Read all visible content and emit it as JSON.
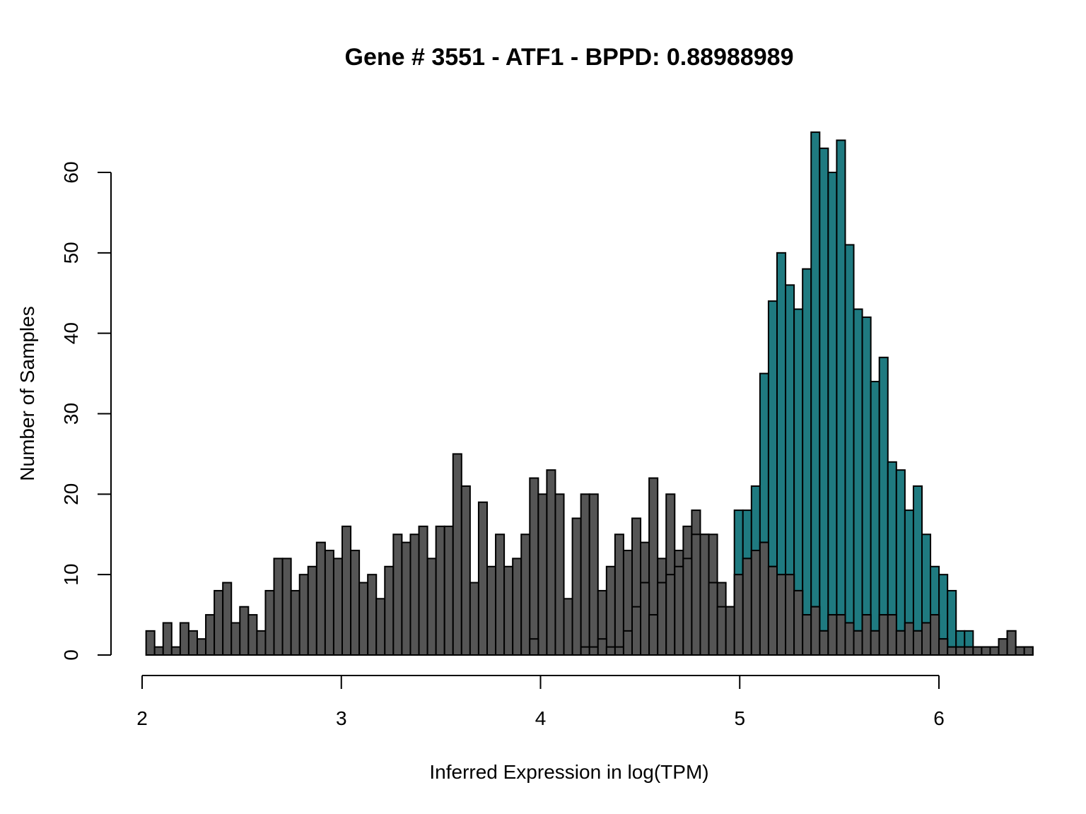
{
  "chart_data": {
    "type": "bar",
    "title": "Gene # 3551 - ATF1 - BPPD: 0.88988989",
    "xlabel": "Inferred Expression in log(TPM)",
    "ylabel": "Number of Samples",
    "xlim": [
      2,
      6.3
    ],
    "ylim": [
      0,
      65
    ],
    "x_ticks": [
      "2",
      "3",
      "4",
      "5",
      "6"
    ],
    "y_ticks": [
      "0",
      "10",
      "20",
      "30",
      "40",
      "50",
      "60"
    ],
    "bin_start": 2.02,
    "bin_width": 0.0428,
    "series": [
      {
        "color": "#1f7a80",
        "values": [
          0,
          0,
          0,
          0,
          0,
          0,
          0,
          0,
          0,
          0,
          0,
          0,
          0,
          0,
          0,
          0,
          0,
          0,
          0,
          0,
          0,
          0,
          0,
          0,
          0,
          0,
          0,
          0,
          0,
          0,
          0,
          0,
          0,
          0,
          0,
          0,
          0,
          0,
          0,
          0,
          0,
          0,
          0,
          0,
          0,
          0,
          0,
          0,
          0,
          0,
          0,
          0,
          0,
          0,
          0,
          0,
          0,
          0,
          0,
          0,
          0,
          0,
          0,
          0,
          0,
          0,
          0,
          0,
          0,
          18,
          18,
          21,
          35,
          44,
          50,
          46,
          43,
          48,
          65,
          63,
          60,
          64,
          51,
          43,
          42,
          34,
          37,
          24,
          23,
          18,
          21,
          15,
          11,
          10,
          8,
          3,
          3,
          1,
          1,
          1,
          1,
          1,
          1,
          1
        ]
      },
      {
        "color": "#555555",
        "values": [
          3,
          1,
          4,
          1,
          4,
          3,
          2,
          5,
          8,
          9,
          4,
          6,
          5,
          3,
          8,
          12,
          12,
          8,
          10,
          11,
          14,
          13,
          12,
          16,
          13,
          9,
          10,
          7,
          11,
          15,
          14,
          15,
          16,
          12,
          16,
          16,
          25,
          21,
          9,
          19,
          11,
          15,
          11,
          12,
          15,
          22,
          20,
          23,
          20,
          7,
          17,
          20,
          20,
          8,
          11,
          15,
          13,
          17,
          14,
          22,
          12,
          20,
          13,
          16,
          18,
          15,
          15,
          9,
          6,
          10,
          12,
          13,
          14,
          11,
          10,
          10,
          8,
          5,
          6,
          3,
          5,
          5,
          4,
          3,
          5,
          3,
          5,
          5,
          3,
          4,
          3,
          4,
          5,
          2,
          1,
          1,
          1,
          1,
          1,
          1,
          2,
          3,
          1,
          1
        ]
      },
      {
        "color": "#555555",
        "values": [
          0,
          0,
          0,
          0,
          0,
          0,
          0,
          0,
          0,
          0,
          0,
          0,
          0,
          0,
          0,
          0,
          0,
          0,
          0,
          0,
          0,
          0,
          0,
          0,
          0,
          0,
          0,
          0,
          0,
          0,
          0,
          0,
          0,
          0,
          0,
          0,
          0,
          0,
          0,
          0,
          0,
          0,
          0,
          0,
          0,
          2,
          0,
          0,
          0,
          0,
          0,
          1,
          1,
          2,
          1,
          1,
          3,
          6,
          9,
          5,
          9,
          10,
          11,
          12,
          15,
          15,
          9,
          6,
          6,
          10,
          12,
          13,
          14,
          11,
          10,
          10,
          8,
          5,
          6,
          3,
          5,
          5,
          4,
          3,
          5,
          3,
          5,
          5,
          3,
          4,
          3,
          4,
          5,
          2,
          1,
          1,
          1,
          1,
          1,
          1,
          2,
          3,
          1,
          1
        ]
      }
    ]
  }
}
